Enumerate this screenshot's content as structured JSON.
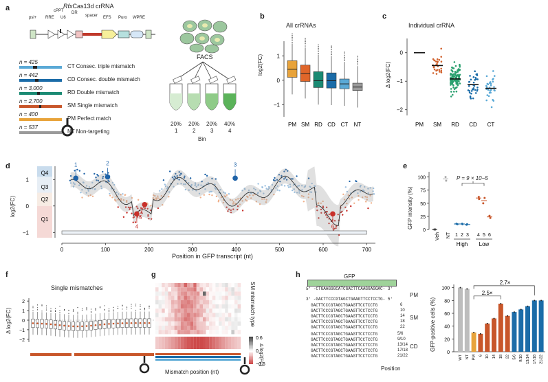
{
  "panels": {
    "a": {
      "label": "a",
      "title_italic": "Rfx",
      "title_rest": "Cas13d crRNA",
      "construct": [
        "psi+",
        "RRE",
        "cPPT",
        "U6",
        "DR",
        "spacer",
        "EFS",
        "Puro",
        "WPRE"
      ],
      "libraries": [
        {
          "n": "n = 425",
          "desc": "CT Consec. triple mismatch",
          "color": "#5aa9d6"
        },
        {
          "n": "n = 442",
          "desc": "CD Consec. double mismatch",
          "color": "#1b6ca8"
        },
        {
          "n": "n = 3,000",
          "desc": "RD Double mismatch",
          "color": "#1a8a73"
        },
        {
          "n": "n = 2,700",
          "desc": "SM Single mismatch",
          "color": "#c8562a"
        },
        {
          "n": "n = 400",
          "desc": "PM Perfect match",
          "color": "#e8a33a"
        },
        {
          "n": "n = 537",
          "desc": "NT Non-targeting",
          "color": "#9a9a9a"
        }
      ],
      "facs": "FACS",
      "bins": [
        {
          "pct": "20%",
          "num": "1"
        },
        {
          "pct": "20%",
          "num": "2"
        },
        {
          "pct": "20%",
          "num": "3"
        },
        {
          "pct": "40%",
          "num": "4"
        }
      ],
      "bin_label": "Bin"
    },
    "b": {
      "label": "b",
      "title": "All crRNAs",
      "ylabel": "log2(FC)",
      "yticks": [
        "1",
        "0",
        "−1"
      ],
      "categories": [
        "PM",
        "SM",
        "RD",
        "CD",
        "CT",
        "NT"
      ]
    },
    "c": {
      "label": "c",
      "title": "Individual crRNA",
      "ylabel": "Δ log2(FC)",
      "yticks": [
        "0",
        "−1",
        "−2"
      ],
      "categories": [
        "PM",
        "SM",
        "RD",
        "CD",
        "CT"
      ]
    },
    "d": {
      "label": "d",
      "ylabel": "log2(FC)",
      "xlabel": "Position in GFP transcript (nt)",
      "quartiles": [
        "Q4",
        "Q3",
        "Q2",
        "Q1"
      ],
      "yticks": [
        "1",
        "0",
        "−1"
      ],
      "xticks": [
        "0",
        "100",
        "200",
        "300",
        "400",
        "500",
        "600",
        "700"
      ],
      "callouts": [
        "1",
        "2",
        "3",
        "4",
        "5",
        "6"
      ]
    },
    "e": {
      "label": "e",
      "ylabel": "GFP intensity (%)",
      "pvalue": "P = 9 × 10−5",
      "yticks": [
        "100",
        "75",
        "50",
        "25",
        "0"
      ],
      "xcats": [
        "Veh",
        "NT",
        "1",
        "2",
        "3",
        "4",
        "5",
        "6"
      ],
      "groups": [
        "High",
        "Low"
      ]
    },
    "f": {
      "label": "f",
      "title": "Single mismatches",
      "ylabel": "Δ log2(FC)",
      "yticks": [
        "2",
        "1",
        "0",
        "−1",
        "−2"
      ]
    },
    "g": {
      "label": "g",
      "side_label": "SM mismatch type",
      "xlabel": "Mismatch position (nt)",
      "cbar_label": "Δ log2(FC)",
      "cbar_ticks": [
        "0.6",
        "0",
        "−0.6"
      ]
    },
    "h": {
      "label": "h",
      "gfp": "GFP",
      "target": "5′ -CTGAAGGGCATCGACTTCAAGGAGGAC- 3′",
      "guide": "3′ -GACTTCCCGTAGCTGAAGTTCCTCCTG- 5′",
      "pm_label": "PM",
      "sm_label": "SM",
      "cd_label": "CD",
      "position_label": "Position",
      "sm_rows": [
        {
          "seq": "GACTTCCCGTAGCTGAAGTTCCTCCTG",
          "pos": "6"
        },
        {
          "seq": "GACTTCCCGTAGCTGAAGTTCCTCCTG",
          "pos": "10"
        },
        {
          "seq": "GACTTCCCGTAGCTGAAGTTCCTCCTG",
          "pos": "14"
        },
        {
          "seq": "GACTTCCCGTAGCTGAAGTTCCTCCTG",
          "pos": "18"
        },
        {
          "seq": "GACTTCCCGTAGCTGAAGTTCCTCCTG",
          "pos": "22"
        }
      ],
      "cd_rows": [
        {
          "seq": "GACTTCCCGTAGCTGAAGTTCCTCCTG",
          "pos": "5/6"
        },
        {
          "seq": "GACTTCCCGTAGCTGAAGTTCCTCCTG",
          "pos": "9/10"
        },
        {
          "seq": "GACTTCCCGTAGCTGAAGTTCCTCCTG",
          "pos": "13/14"
        },
        {
          "seq": "GACTTCCCGTAGCTGAAGTTCCTCCTG",
          "pos": "17/18"
        },
        {
          "seq": "GACTTCCCGTAGCTGAAGTTCCTCCTG",
          "pos": "21/22"
        }
      ],
      "ylabel": "GFP-positive cells (%)",
      "yticks": [
        "100",
        "80",
        "60",
        "40",
        "20",
        "0"
      ],
      "fold_2_5": "2.5×",
      "fold_2_7": "2.7×",
      "bars": {
        "categories": [
          "WT",
          "NT",
          "PM",
          "6",
          "10",
          "14",
          "18",
          "22",
          "5/6",
          "9/10",
          "13/14",
          "17/18",
          "21/22"
        ],
        "values": [
          100,
          98,
          30,
          28,
          44,
          52,
          75,
          56,
          62,
          66,
          71,
          80,
          80
        ],
        "colors": [
          "#bdbdbd",
          "#bdbdbd",
          "#e8a33a",
          "#c8562a",
          "#c8562a",
          "#c8562a",
          "#c8562a",
          "#c8562a",
          "#1b6ca8",
          "#1b6ca8",
          "#1b6ca8",
          "#1b6ca8",
          "#1b6ca8"
        ]
      }
    }
  }
}
